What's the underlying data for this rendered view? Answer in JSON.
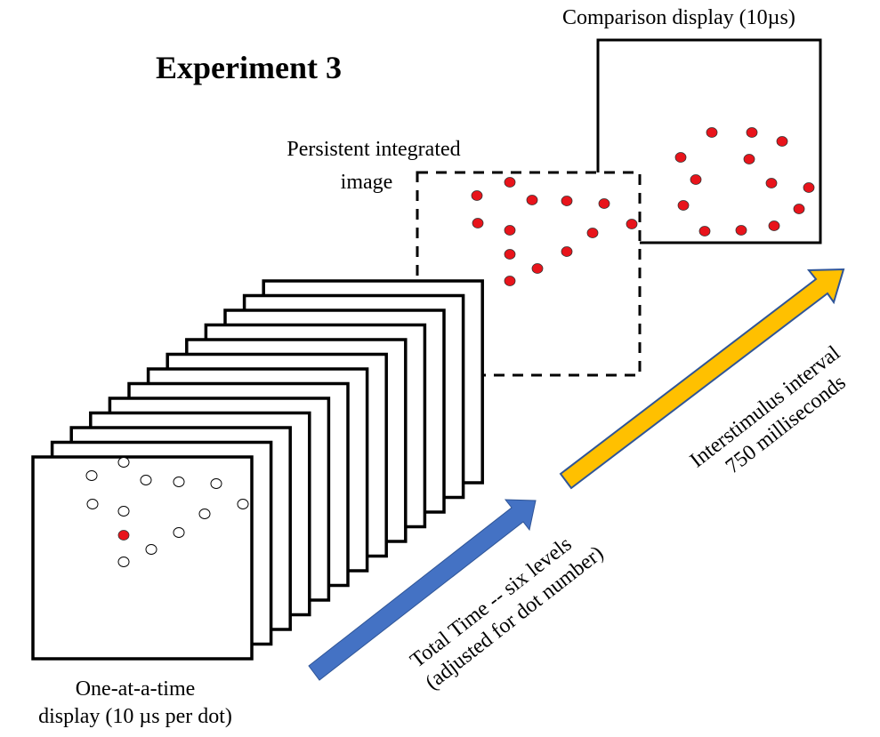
{
  "title": "Experiment 3",
  "comparison": {
    "label": "Comparison display (10µs)",
    "dot_color": "#e8141b"
  },
  "integrated": {
    "label_line1": "Persistent integrated",
    "label_line2": "image"
  },
  "sequence": {
    "frame_count": 13,
    "label_line1": "One-at-a-time",
    "label_line2": "display (10 µs per dot)"
  },
  "total_time_arrow": {
    "line1": "Total Time -- six levels",
    "line2": "(adjusted for dot number)",
    "color": "#4472c4"
  },
  "isi_arrow": {
    "line1": "Interstimulus interval",
    "line2": "750 milliseconds",
    "color": "#ffc000",
    "outline": "#2f5597"
  }
}
